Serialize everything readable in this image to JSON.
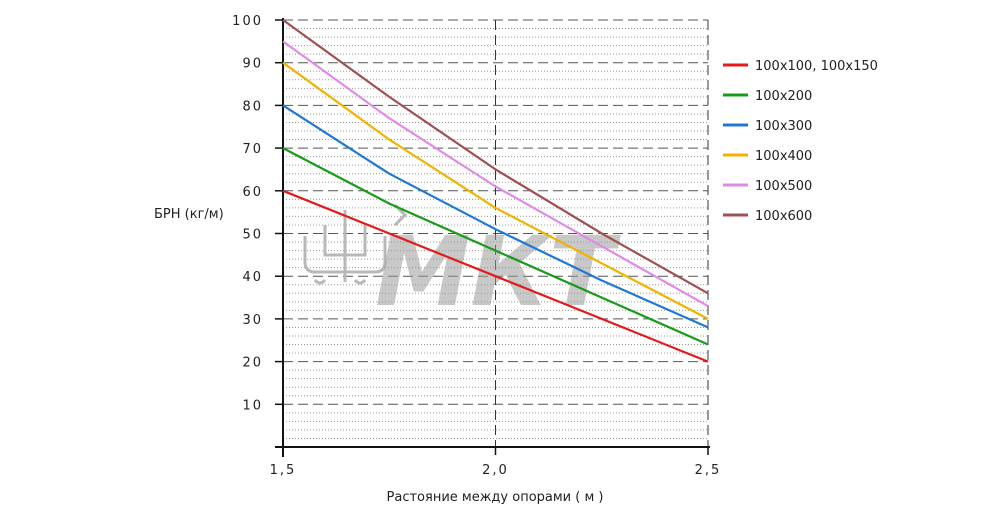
{
  "chart_data": {
    "type": "line",
    "title": "",
    "xlabel": "Растояние между опорами  ( м )",
    "ylabel": "БРН (кг/м)",
    "xlim": [
      1.5,
      2.5
    ],
    "ylim": [
      0,
      100
    ],
    "x_ticks": [
      "1,5",
      "2,0",
      "2,5"
    ],
    "y_ticks": [
      "10",
      "20",
      "30",
      "40",
      "50",
      "60",
      "70",
      "80",
      "90",
      "100"
    ],
    "y_tick_values": [
      10,
      20,
      30,
      40,
      50,
      60,
      70,
      80,
      90,
      100
    ],
    "x_tick_values": [
      1.5,
      2.0,
      2.5
    ],
    "grid": true,
    "legend_position": "right",
    "x": [
      1.5,
      1.75,
      2.0,
      2.25,
      2.5
    ],
    "series": [
      {
        "name": "100x100, 100x150",
        "color": "#e31a1c",
        "values": [
          60,
          50,
          40,
          30,
          20
        ]
      },
      {
        "name": "100x200",
        "color": "#1a9a1a",
        "values": [
          70,
          57,
          46,
          35,
          24
        ]
      },
      {
        "name": "100x300",
        "color": "#1f78d4",
        "values": [
          80,
          64,
          51,
          39,
          28
        ]
      },
      {
        "name": "100x400",
        "color": "#f0b400",
        "values": [
          90,
          72,
          56,
          43,
          30
        ]
      },
      {
        "name": "100x500",
        "color": "#e08ae8",
        "values": [
          95,
          77,
          61,
          47,
          33
        ]
      },
      {
        "name": "100x600",
        "color": "#a05050",
        "values": [
          100,
          82,
          65,
          50,
          36
        ]
      }
    ],
    "watermark": "МКТ"
  }
}
